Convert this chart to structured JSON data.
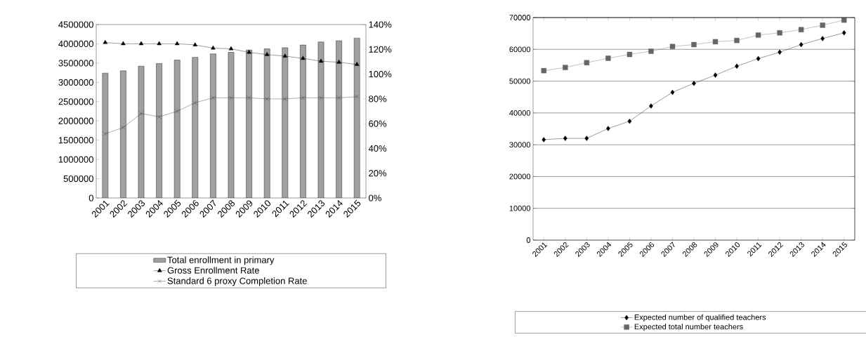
{
  "chart_data": [
    {
      "type": "bar",
      "categories": [
        "2001",
        "2002",
        "2003",
        "2004",
        "2005",
        "2006",
        "2007",
        "2008",
        "2009",
        "2010",
        "2011",
        "2012",
        "2013",
        "2014",
        "2015"
      ],
      "ylim": [
        0,
        4500000
      ],
      "yticks": [
        0,
        500000,
        1000000,
        1500000,
        2000000,
        2500000,
        3000000,
        3500000,
        4000000,
        4500000
      ],
      "y2lim": [
        0,
        140
      ],
      "y2ticks": [
        {
          "value": 0,
          "label": "0%"
        },
        {
          "value": 20,
          "label": "20%"
        },
        {
          "value": 40,
          "label": "40%"
        },
        {
          "value": 60,
          "label": "60%"
        },
        {
          "value": 80,
          "label": "80%"
        },
        {
          "value": 100,
          "label": "100%"
        },
        {
          "value": 120,
          "label": "120%"
        },
        {
          "value": 140,
          "label": "140%"
        }
      ],
      "grid": false,
      "legend": "bottom",
      "series": [
        {
          "name": "Total enrollment in primary",
          "type": "bar",
          "color": "#a0a0a0",
          "values": [
            3240000,
            3300000,
            3420000,
            3490000,
            3580000,
            3650000,
            3740000,
            3780000,
            3840000,
            3870000,
            3900000,
            3970000,
            4050000,
            4080000,
            4150000
          ]
        },
        {
          "name": "Gross Enrollment Rate",
          "type": "line",
          "axis": "y2",
          "marker": "triangle",
          "color": "#000000",
          "values": [
            125.5,
            124.5,
            124.5,
            124.5,
            124.5,
            123.6,
            121,
            120.4,
            117.6,
            115.8,
            114.5,
            112.7,
            110.4,
            109.6,
            107.8
          ]
        },
        {
          "name": "Standard 6 proxy Completion Rate",
          "type": "line",
          "axis": "y2",
          "marker": "cross",
          "color": "#333333",
          "values": [
            51.8,
            56.9,
            68.2,
            65.5,
            70,
            76.9,
            80.9,
            80.9,
            80.9,
            80,
            80,
            80.9,
            80.9,
            80.9,
            81.8
          ]
        }
      ]
    },
    {
      "type": "line",
      "categories": [
        "2001",
        "2002",
        "2003",
        "2004",
        "2005",
        "2006",
        "2007",
        "2008",
        "2009",
        "2010",
        "2011",
        "2012",
        "2013",
        "2014",
        "2015"
      ],
      "ylim": [
        0,
        70000
      ],
      "yticks": [
        0,
        10000,
        20000,
        30000,
        40000,
        50000,
        60000,
        70000
      ],
      "grid": "y",
      "legend": "bottom",
      "series": [
        {
          "name": "Expected number of qualified teachers",
          "marker": "diamond",
          "color": "#000000",
          "values": [
            31600,
            32000,
            32000,
            35100,
            37400,
            42200,
            46500,
            49300,
            51900,
            54700,
            57100,
            59100,
            61500,
            63400,
            65200
          ]
        },
        {
          "name": "Expected total number teachers",
          "marker": "square",
          "color": "#666666",
          "values": [
            53300,
            54300,
            55800,
            57200,
            58400,
            59400,
            60900,
            61500,
            62400,
            62800,
            64500,
            65200,
            66200,
            67600,
            69200
          ]
        }
      ]
    }
  ]
}
